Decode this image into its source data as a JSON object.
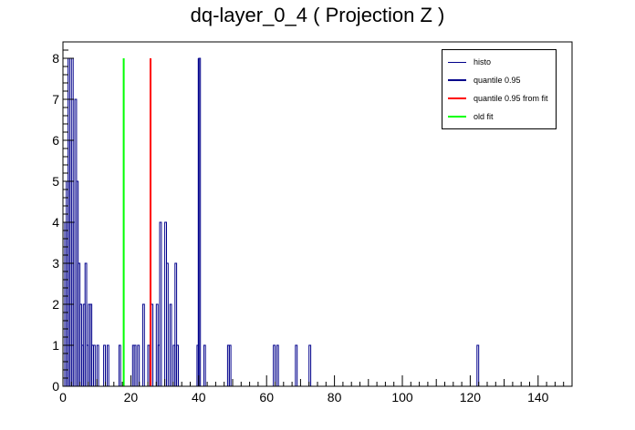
{
  "chart_data": {
    "type": "bar",
    "title": "dq-layer_0_4 ( Projection Z )",
    "xlabel": "",
    "ylabel": "",
    "xlim": [
      0,
      150
    ],
    "ylim": [
      0,
      8.4
    ],
    "x_ticks": [
      0,
      20,
      40,
      60,
      80,
      100,
      120,
      140
    ],
    "y_ticks": [
      0,
      1,
      2,
      3,
      4,
      5,
      6,
      7,
      8
    ],
    "bin_width": 0.5,
    "legend_placement": "top-right",
    "series": [
      {
        "name": "histo",
        "color": "#00008b",
        "bins": [
          [
            0.5,
            4
          ],
          [
            1.0,
            5
          ],
          [
            1.5,
            8
          ],
          [
            2.0,
            6
          ],
          [
            2.5,
            8
          ],
          [
            3.0,
            4
          ],
          [
            3.5,
            7
          ],
          [
            4.0,
            5
          ],
          [
            4.5,
            3
          ],
          [
            5.0,
            2
          ],
          [
            5.5,
            1
          ],
          [
            6.0,
            2
          ],
          [
            6.5,
            3
          ],
          [
            7.0,
            1
          ],
          [
            7.5,
            2
          ],
          [
            8.0,
            2
          ],
          [
            8.5,
            1
          ],
          [
            9.0,
            1
          ],
          [
            10.0,
            1
          ],
          [
            12.0,
            1
          ],
          [
            13.0,
            1
          ],
          [
            16.5,
            1
          ],
          [
            20.5,
            1
          ],
          [
            21.0,
            1
          ],
          [
            22.0,
            1
          ],
          [
            23.5,
            2
          ],
          [
            25.0,
            1
          ],
          [
            26.0,
            2
          ],
          [
            27.5,
            2
          ],
          [
            28.0,
            1
          ],
          [
            28.5,
            4
          ],
          [
            30.0,
            4
          ],
          [
            30.5,
            3
          ],
          [
            31.5,
            2
          ],
          [
            32.5,
            1
          ],
          [
            33.0,
            3
          ],
          [
            33.5,
            1
          ],
          [
            39.5,
            1
          ],
          [
            40.0,
            8
          ],
          [
            41.5,
            1
          ],
          [
            48.5,
            1
          ],
          [
            49.0,
            1
          ],
          [
            62.0,
            1
          ],
          [
            63.0,
            1
          ],
          [
            68.5,
            1
          ],
          [
            72.5,
            1
          ],
          [
            122.0,
            1
          ]
        ]
      },
      {
        "name": "quantile 0.95",
        "color": "#00008b",
        "x": 40.0,
        "y": 8
      },
      {
        "name": "quantile 0.95 from fit",
        "color": "#ff0000",
        "x": 25.8,
        "y": 8
      },
      {
        "name": "old fit",
        "color": "#00ff00",
        "x": 17.9,
        "y": 8
      }
    ]
  },
  "legend": {
    "items": [
      {
        "label": "histo",
        "color": "#00008b"
      },
      {
        "label": "quantile 0.95",
        "color": "#00008b"
      },
      {
        "label": "quantile 0.95 from fit",
        "color": "#ff0000"
      },
      {
        "label": "old fit",
        "color": "#00ff00"
      }
    ]
  }
}
